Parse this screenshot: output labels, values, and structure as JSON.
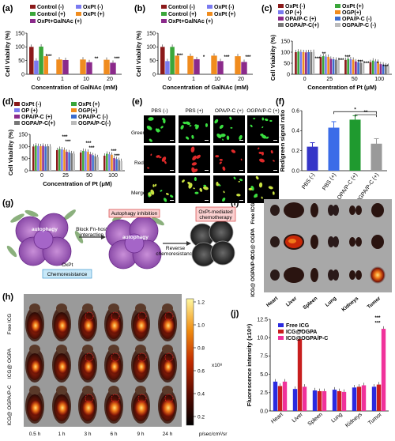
{
  "colors": {
    "c1": "#8b1a1a",
    "c2": "#7a7af0",
    "c3": "#3aa63a",
    "c4": "#f08c1e",
    "c5": "#8b2a8b",
    "c6": "#3b6ccf",
    "c7": "#777777",
    "c8": "#bbbbbb",
    "f_pbsneg": "#3535c8",
    "f_pbspos": "#3b6ce8",
    "f_opa": "#1f9a2f",
    "f_ogpa": "#9a9a9a",
    "j_free": "#2a2ae0",
    "j_ogpa": "#c81e1e",
    "j_ogpapc": "#f0329a"
  },
  "panels": {
    "a": "(a)",
    "b": "(b)",
    "c": "(c)",
    "d": "(d)",
    "e": "(e)",
    "f": "(f)",
    "g": "(g)",
    "h": "(h)",
    "i": "(i)",
    "j": "(j)"
  },
  "panel_e": {
    "cols": [
      "PBS (-)",
      "PBS (+)",
      "OPA/P-C (+)",
      "OGPA/P-C (+)"
    ],
    "rows": [
      "Green",
      "Red",
      "Merge"
    ]
  },
  "panel_g": {
    "autophagy1": "autophagy",
    "autophagy2": "autophagy",
    "oxpt": "OxPt",
    "chemo": "Chemoresistance",
    "block1": "Block Fn-host",
    "block2": "interaction",
    "inhib": "Autophagy inhibition",
    "rev1": "Reverse",
    "rev2": "chemoresistance",
    "med1": "OxPt-mediated",
    "med2": "chemotherapy"
  },
  "panel_h": {
    "rows": [
      "Free ICG",
      "ICG@ OGPA",
      "ICG@ OGPA/P-C"
    ],
    "times": [
      "0.5 h",
      "1 h",
      "3 h",
      "6 h",
      "9 h",
      "24 h"
    ],
    "colorbar_ticks": [
      "1.2",
      "1.0",
      "0.8",
      "0.6",
      "0.4",
      "0.2"
    ],
    "colorbar_exp": "x10⁸",
    "unit": "p/sec/cm²/sr"
  },
  "panel_i": {
    "rows": [
      "Free ICG",
      "ICG@ OGPA",
      "ICG@ OGPA/P-C"
    ],
    "organs": [
      "Heart",
      "Liver",
      "Spleen",
      "Lung",
      "Kidneys",
      "Tumor"
    ]
  },
  "chart_data": [
    {
      "id": "a",
      "type": "bar",
      "categories": [
        "0",
        "1",
        "10",
        "20"
      ],
      "xlabel": "Concentration of GalNAc (mM)",
      "ylabel": "Cell Viability (%)",
      "ylim": [
        0,
        150
      ],
      "yticks": [
        0,
        50,
        100,
        150
      ],
      "series": [
        {
          "name": "Control (-)",
          "color": "#8b1a1a",
          "values": [
            100,
            0,
            0,
            0
          ]
        },
        {
          "name": "OxPt (-)",
          "color": "#7a7af0",
          "values": [
            50,
            0,
            0,
            0
          ]
        },
        {
          "name": "Control (+)",
          "color": "#3aa63a",
          "values": [
            101,
            0,
            0,
            0
          ]
        },
        {
          "name": "OxPt (+)",
          "color": "#f08c1e",
          "values": [
            66,
            54,
            54,
            53
          ]
        },
        {
          "name": "OxPt+GalNAc (+)",
          "color": "#8b2a8b",
          "values": [
            0,
            52,
            44,
            42
          ]
        }
      ],
      "annotations": [
        "***",
        "**",
        "***"
      ]
    },
    {
      "id": "b",
      "type": "bar",
      "categories": [
        "0",
        "1",
        "10",
        "20"
      ],
      "xlabel": "Concentration of GalNAc (mM)",
      "ylabel": "Cell Viability (%)",
      "ylim": [
        0,
        150
      ],
      "yticks": [
        0,
        50,
        100,
        150
      ],
      "series": [
        {
          "name": "Control (-)",
          "color": "#8b1a1a",
          "values": [
            100,
            0,
            0,
            0
          ]
        },
        {
          "name": "OxPt (-)",
          "color": "#7a7af0",
          "values": [
            48,
            0,
            0,
            0
          ]
        },
        {
          "name": "Control (+)",
          "color": "#3aa63a",
          "values": [
            100,
            0,
            0,
            0
          ]
        },
        {
          "name": "OxPt (+)",
          "color": "#f08c1e",
          "values": [
            68,
            67,
            68,
            66
          ]
        },
        {
          "name": "OxPt+GalNAc (+)",
          "color": "#8b2a8b",
          "values": [
            0,
            55,
            48,
            45
          ]
        }
      ],
      "annotations": [
        "***",
        "*",
        "***",
        "***"
      ]
    },
    {
      "id": "c",
      "type": "bar",
      "categories": [
        "0",
        "25",
        "50",
        "100"
      ],
      "xlabel": "Concentration of Pt (μM)",
      "ylabel": "Cell Viability (%)",
      "ylim": [
        0,
        150
      ],
      "yticks": [
        0,
        50,
        100,
        150
      ],
      "series": [
        {
          "name": "OxPt (-)",
          "color": "#8b1a1a",
          "values": [
            100,
            78,
            65,
            55
          ]
        },
        {
          "name": "OxPt (+)",
          "color": "#3aa63a",
          "values": [
            103,
            82,
            70,
            62
          ]
        },
        {
          "name": "OP (+)",
          "color": "#7a7af0",
          "values": [
            101,
            80,
            68,
            58
          ]
        },
        {
          "name": "OGP(+)",
          "color": "#f08c1e",
          "values": [
            100,
            79,
            66,
            56
          ]
        },
        {
          "name": "OPA/P-C (+)",
          "color": "#8b2a8b",
          "values": [
            99,
            70,
            58,
            46
          ]
        },
        {
          "name": "OPA/P-C (-)",
          "color": "#3b6ccf",
          "values": [
            100,
            68,
            55,
            44
          ]
        },
        {
          "name": "OGPA/P-C(+)",
          "color": "#777777",
          "values": [
            100,
            66,
            52,
            40
          ]
        },
        {
          "name": "OGPA/P-C (-)",
          "color": "#bbbbbb",
          "values": [
            101,
            64,
            50,
            38
          ]
        }
      ],
      "annotations": [
        "***",
        "**",
        "***",
        "***",
        "***",
        "***",
        "*",
        "***"
      ]
    },
    {
      "id": "d",
      "type": "bar",
      "categories": [
        "0",
        "25",
        "50",
        "100"
      ],
      "xlabel": "Concentration of Pt (μM)",
      "ylabel": "Cell Viability (%)",
      "ylim": [
        0,
        150
      ],
      "yticks": [
        0,
        50,
        100,
        150
      ],
      "series": [
        {
          "name": "OxPt (-)",
          "color": "#8b1a1a",
          "values": [
            100,
            85,
            75,
            62
          ]
        },
        {
          "name": "OxPt (+)",
          "color": "#3aa63a",
          "values": [
            104,
            90,
            82,
            70
          ]
        },
        {
          "name": "OP (+)",
          "color": "#7a7af0",
          "values": [
            102,
            88,
            80,
            68
          ]
        },
        {
          "name": "OGP(+)",
          "color": "#f08c1e",
          "values": [
            101,
            86,
            78,
            66
          ]
        },
        {
          "name": "OPA/P-C (+)",
          "color": "#8b2a8b",
          "values": [
            103,
            78,
            68,
            52
          ]
        },
        {
          "name": "OPA/P-C (-)",
          "color": "#3b6ccf",
          "values": [
            100,
            76,
            64,
            48
          ]
        },
        {
          "name": "OGPA/P-C(+)",
          "color": "#777777",
          "values": [
            101,
            72,
            60,
            44
          ]
        },
        {
          "name": "OGPA/P-C(-)",
          "color": "#bbbbbb",
          "values": [
            100,
            70,
            56,
            40
          ]
        }
      ],
      "annotations": [
        "***",
        "***",
        "***",
        "***",
        "***",
        "***"
      ]
    },
    {
      "id": "f",
      "type": "bar",
      "categories": [
        "PBS (-)",
        "PBS (+)",
        "OPA/P-C (+)",
        "OGPA/P-C (+)"
      ],
      "ylabel": "Red/green signal ratio",
      "ylim": [
        0,
        0.6
      ],
      "yticks": [
        0.0,
        0.2,
        0.4,
        0.6
      ],
      "values": [
        0.24,
        0.43,
        0.51,
        0.27
      ],
      "errors": [
        0.04,
        0.06,
        0.04,
        0.05
      ],
      "annotations": [
        "*",
        "**"
      ]
    },
    {
      "id": "j",
      "type": "bar",
      "categories": [
        "Heart",
        "Liver",
        "Spleen",
        "Lung",
        "Kidneys",
        "Tumor"
      ],
      "ylabel": "Fluorescence intensity (x10⁸)",
      "ylim": [
        0,
        12.5
      ],
      "yticks": [
        0.0,
        2.5,
        5.0,
        7.5,
        10.0,
        12.5
      ],
      "series": [
        {
          "name": "Free ICG",
          "color": "#2a2ae0",
          "values": [
            4.0,
            3.0,
            2.8,
            2.9,
            3.2,
            3.3
          ]
        },
        {
          "name": "ICG@OGPA",
          "color": "#c81e1e",
          "values": [
            3.4,
            9.8,
            2.7,
            2.7,
            3.3,
            3.6
          ]
        },
        {
          "name": "ICG@OGPA/P-C",
          "color": "#f0329a",
          "values": [
            4.0,
            3.3,
            2.7,
            2.6,
            3.5,
            11.2
          ]
        }
      ],
      "annotations": [
        "***",
        "***",
        "***"
      ]
    }
  ]
}
